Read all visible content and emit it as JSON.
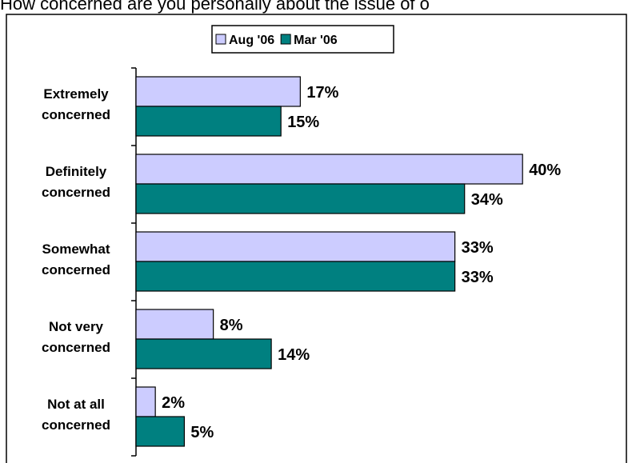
{
  "chart_data": {
    "type": "hbar",
    "title": "How concerned are you personally about the issue of o",
    "categories": [
      "Extremely concerned",
      "Definitely concerned",
      "Somewhat concerned",
      "Not very concerned",
      "Not at all concerned"
    ],
    "series": [
      {
        "name": "Aug '06",
        "color": "#ccccff",
        "values": [
          17,
          40,
          33,
          8,
          2
        ],
        "value_labels": [
          "17%",
          "40%",
          "33%",
          "8%",
          "2%"
        ]
      },
      {
        "name": "Mar '06",
        "color": "#008080",
        "values": [
          15,
          34,
          33,
          14,
          5
        ],
        "value_labels": [
          "15%",
          "34%",
          "33%",
          "14%",
          "5%"
        ]
      }
    ],
    "xlim": [
      0,
      50
    ],
    "legend": "top"
  }
}
